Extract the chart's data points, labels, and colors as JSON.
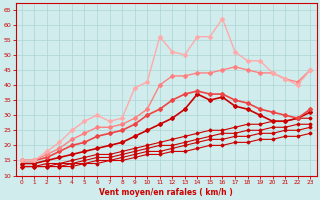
{
  "background_color": "#d0ecec",
  "grid_color": "#aad4d4",
  "xlabel": "Vent moyen/en rafales ( km/h )",
  "xlabel_color": "#cc0000",
  "tick_color": "#cc0000",
  "xlim": [
    -0.5,
    23.5
  ],
  "ylim": [
    10,
    67
  ],
  "yticks": [
    10,
    15,
    20,
    25,
    30,
    35,
    40,
    45,
    50,
    55,
    60,
    65
  ],
  "xticks": [
    0,
    1,
    2,
    3,
    4,
    5,
    6,
    7,
    8,
    9,
    10,
    11,
    12,
    13,
    14,
    15,
    16,
    17,
    18,
    19,
    20,
    21,
    22,
    23
  ],
  "lines": [
    {
      "x": [
        0,
        1,
        2,
        3,
        4,
        5,
        6,
        7,
        8,
        9,
        10,
        11,
        12,
        13,
        14,
        15,
        16,
        17,
        18,
        19,
        20,
        21,
        22,
        23
      ],
      "y": [
        13,
        13,
        13,
        13,
        13,
        14,
        14,
        15,
        15,
        16,
        17,
        17,
        18,
        18,
        19,
        20,
        20,
        21,
        21,
        22,
        22,
        23,
        23,
        24
      ],
      "color": "#cc0000",
      "lw": 0.8,
      "marker": "D",
      "ms": 1.5
    },
    {
      "x": [
        0,
        1,
        2,
        3,
        4,
        5,
        6,
        7,
        8,
        9,
        10,
        11,
        12,
        13,
        14,
        15,
        16,
        17,
        18,
        19,
        20,
        21,
        22,
        23
      ],
      "y": [
        13,
        13,
        13,
        13,
        14,
        14,
        15,
        15,
        16,
        17,
        18,
        18,
        19,
        20,
        21,
        22,
        22,
        23,
        23,
        24,
        24,
        25,
        25,
        26
      ],
      "color": "#cc0000",
      "lw": 0.8,
      "marker": "D",
      "ms": 1.5
    },
    {
      "x": [
        0,
        1,
        2,
        3,
        4,
        5,
        6,
        7,
        8,
        9,
        10,
        11,
        12,
        13,
        14,
        15,
        16,
        17,
        18,
        19,
        20,
        21,
        22,
        23
      ],
      "y": [
        13,
        13,
        13,
        14,
        14,
        15,
        16,
        16,
        17,
        18,
        19,
        20,
        20,
        21,
        22,
        23,
        24,
        24,
        25,
        25,
        26,
        26,
        27,
        27
      ],
      "color": "#cc0000",
      "lw": 0.8,
      "marker": "D",
      "ms": 1.5
    },
    {
      "x": [
        0,
        1,
        2,
        3,
        4,
        5,
        6,
        7,
        8,
        9,
        10,
        11,
        12,
        13,
        14,
        15,
        16,
        17,
        18,
        19,
        20,
        21,
        22,
        23
      ],
      "y": [
        13,
        13,
        14,
        14,
        15,
        16,
        17,
        17,
        18,
        19,
        20,
        21,
        22,
        23,
        24,
        25,
        25,
        26,
        27,
        27,
        28,
        28,
        29,
        29
      ],
      "color": "#cc0000",
      "lw": 0.8,
      "marker": "D",
      "ms": 1.5
    },
    {
      "x": [
        0,
        1,
        2,
        3,
        4,
        5,
        6,
        7,
        8,
        9,
        10,
        11,
        12,
        13,
        14,
        15,
        16,
        17,
        18,
        19,
        20,
        21,
        22,
        23
      ],
      "y": [
        14,
        14,
        15,
        16,
        17,
        18,
        19,
        20,
        21,
        23,
        25,
        27,
        29,
        32,
        37,
        35,
        36,
        33,
        32,
        30,
        28,
        28,
        29,
        31
      ],
      "color": "#cc0000",
      "lw": 1.2,
      "marker": "D",
      "ms": 2.0
    },
    {
      "x": [
        0,
        1,
        2,
        3,
        4,
        5,
        6,
        7,
        8,
        9,
        10,
        11,
        12,
        13,
        14,
        15,
        16,
        17,
        18,
        19,
        20,
        21,
        22,
        23
      ],
      "y": [
        15,
        15,
        16,
        18,
        20,
        21,
        23,
        24,
        25,
        27,
        30,
        32,
        35,
        37,
        38,
        37,
        37,
        35,
        34,
        32,
        31,
        30,
        29,
        32
      ],
      "color": "#ee4444",
      "lw": 1.2,
      "marker": "D",
      "ms": 2.0
    },
    {
      "x": [
        0,
        1,
        2,
        3,
        4,
        5,
        6,
        7,
        8,
        9,
        10,
        11,
        12,
        13,
        14,
        15,
        16,
        17,
        18,
        19,
        20,
        21,
        22,
        23
      ],
      "y": [
        15,
        15,
        17,
        19,
        22,
        24,
        26,
        26,
        27,
        29,
        32,
        40,
        43,
        43,
        44,
        44,
        45,
        46,
        45,
        44,
        44,
        42,
        41,
        45
      ],
      "color": "#ff8080",
      "lw": 1.0,
      "marker": "D",
      "ms": 2.0
    },
    {
      "x": [
        0,
        1,
        2,
        3,
        4,
        5,
        6,
        7,
        8,
        9,
        10,
        11,
        12,
        13,
        14,
        15,
        16,
        17,
        18,
        19,
        20,
        21,
        22,
        23
      ],
      "y": [
        15,
        15,
        18,
        21,
        25,
        28,
        30,
        28,
        29,
        39,
        41,
        56,
        51,
        50,
        56,
        56,
        62,
        51,
        48,
        48,
        44,
        42,
        40,
        45
      ],
      "color": "#ffaaaa",
      "lw": 1.0,
      "marker": "D",
      "ms": 2.0
    }
  ]
}
